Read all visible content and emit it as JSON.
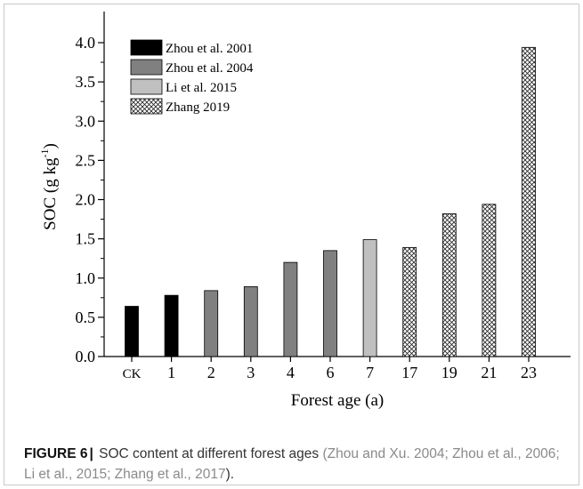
{
  "figure": {
    "label": "FIGURE 6",
    "separator": "|",
    "caption_text": "SOC content at different forest ages",
    "caption_refs_open": "(",
    "caption_refs": "Zhou and Xu. 2004; Zhou et al., 2006; Li et al., 2015; Zhang et al., 2017",
    "caption_refs_close": ")."
  },
  "chart_data": {
    "type": "bar",
    "title": "",
    "xlabel": "Forest age (a)",
    "ylabel_main": "SOC (g kg",
    "ylabel_sup": "-1",
    "ylabel_close": ")",
    "ylim": [
      0,
      4.25
    ],
    "yticks": [
      "0.0",
      "0.5",
      "1.0",
      "1.5",
      "2.0",
      "2.5",
      "3.0",
      "3.5",
      "4.0"
    ],
    "grid": false,
    "legend_position": "top-left",
    "categories": [
      "CK",
      "1",
      "2",
      "3",
      "4",
      "6",
      "7",
      "17",
      "19",
      "21",
      "23"
    ],
    "values": [
      0.64,
      0.78,
      0.84,
      0.89,
      1.2,
      1.35,
      1.49,
      1.39,
      1.82,
      1.94,
      3.94
    ],
    "series_index": [
      0,
      0,
      1,
      1,
      1,
      1,
      2,
      3,
      3,
      3,
      3
    ],
    "series": [
      {
        "name": "Zhou et al. 2001",
        "color": "#000000",
        "fill": "solid"
      },
      {
        "name": "Zhou et al. 2004",
        "color": "#808080",
        "fill": "solid"
      },
      {
        "name": "Li et al. 2015",
        "color": "#c0c0c0",
        "fill": "solid"
      },
      {
        "name": "Zhang 2019",
        "color": "#ffffff",
        "fill": "crosshatch"
      }
    ]
  }
}
